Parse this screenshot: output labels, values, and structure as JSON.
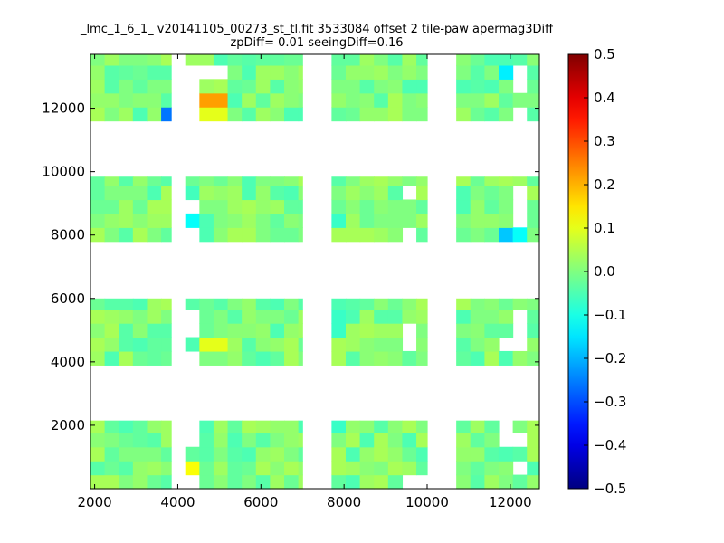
{
  "chart_data": {
    "type": "heatmap",
    "title_lines": [
      "_lmc_1_6_1_ v20141105_00273_st_tl.fit 3533084 offset 2 tile-paw apermag3Diff",
      "zpDiff= 0.01 seeingDiff=0.16"
    ],
    "xlabel": "",
    "ylabel": "",
    "xlim": [
      1900,
      12700
    ],
    "ylim": [
      0,
      13700
    ],
    "x_ticks": [
      2000,
      4000,
      6000,
      8000,
      10000,
      12000
    ],
    "y_ticks": [
      2000,
      4000,
      6000,
      8000,
      10000,
      12000
    ],
    "colorbar": {
      "colormap": "jet",
      "vmin": -0.5,
      "vmax": 0.5,
      "ticks": [
        "0.5",
        "0.4",
        "0.3",
        "0.2",
        "0.1",
        "0.0",
        "−0.1",
        "−0.2",
        "−0.3",
        "−0.4",
        "−0.5"
      ]
    },
    "cell_size": [
      340,
      440
    ],
    "tile_x_ranges": [
      [
        1900,
        3840
      ],
      [
        4180,
        4520
      ],
      [
        4520,
        7000
      ],
      [
        7700,
        10000
      ],
      [
        10700,
        12700
      ]
    ],
    "tile_y_ranges": [
      [
        0,
        2150
      ],
      [
        3900,
        6000
      ],
      [
        7800,
        9840
      ],
      [
        11600,
        13700
      ]
    ],
    "cells": [
      {
        "x": 11900,
        "y": 13030,
        "value": -0.14
      },
      {
        "x": 3870,
        "y": 11800,
        "value": -0.26
      },
      {
        "x": 4860,
        "y": 12230,
        "value": 0.22
      },
      {
        "x": 4860,
        "y": 11800,
        "value": 0.1
      },
      {
        "x": 4180,
        "y": 8520,
        "value": -0.12
      },
      {
        "x": 4180,
        "y": 9380,
        "value": -0.06
      },
      {
        "x": 11900,
        "y": 8090,
        "value": -0.18
      },
      {
        "x": 12240,
        "y": 8090,
        "value": -0.12
      },
      {
        "x": 4860,
        "y": 4500,
        "value": 0.1
      },
      {
        "x": 4180,
        "y": 4500,
        "value": -0.05
      },
      {
        "x": 4180,
        "y": 630,
        "value": 0.12
      },
      {
        "x": 10490,
        "y": 1930,
        "value": 0.08
      },
      {
        "x": 7890,
        "y": 1930,
        "value": -0.07
      },
      {
        "x": 7890,
        "y": 5220,
        "value": -0.07
      },
      {
        "x": 7890,
        "y": 8520,
        "value": -0.07
      }
    ],
    "missing_cells": [
      {
        "x": 12240,
        "y": 12600
      },
      {
        "x": 12240,
        "y": 13030
      },
      {
        "x": 12240,
        "y": 11800
      },
      {
        "x": 4180,
        "y": 13030
      },
      {
        "x": 4180,
        "y": 12600
      },
      {
        "x": 4180,
        "y": 12230
      },
      {
        "x": 4180,
        "y": 11800
      },
      {
        "x": 4860,
        "y": 13030
      },
      {
        "x": 9700,
        "y": 9380
      },
      {
        "x": 4180,
        "y": 9000
      },
      {
        "x": 4180,
        "y": 8090
      },
      {
        "x": 9700,
        "y": 8090
      },
      {
        "x": 12240,
        "y": 9000
      },
      {
        "x": 12240,
        "y": 8520
      },
      {
        "x": 12240,
        "y": 9380
      },
      {
        "x": 12240,
        "y": 5200
      },
      {
        "x": 12240,
        "y": 4900
      },
      {
        "x": 12240,
        "y": 4470
      },
      {
        "x": 11900,
        "y": 4470
      },
      {
        "x": 4180,
        "y": 5600
      },
      {
        "x": 4180,
        "y": 5200
      },
      {
        "x": 4180,
        "y": 4080
      },
      {
        "x": 9700,
        "y": 4470
      },
      {
        "x": 9700,
        "y": 4900
      },
      {
        "x": 4180,
        "y": 1800
      },
      {
        "x": 4180,
        "y": 1370
      },
      {
        "x": 4180,
        "y": 200
      },
      {
        "x": 9700,
        "y": 200
      },
      {
        "x": 10040,
        "y": 200
      },
      {
        "x": 11900,
        "y": 1370
      },
      {
        "x": 12240,
        "y": 1370
      },
      {
        "x": 12240,
        "y": 630
      },
      {
        "x": 11900,
        "y": 1800
      }
    ]
  }
}
